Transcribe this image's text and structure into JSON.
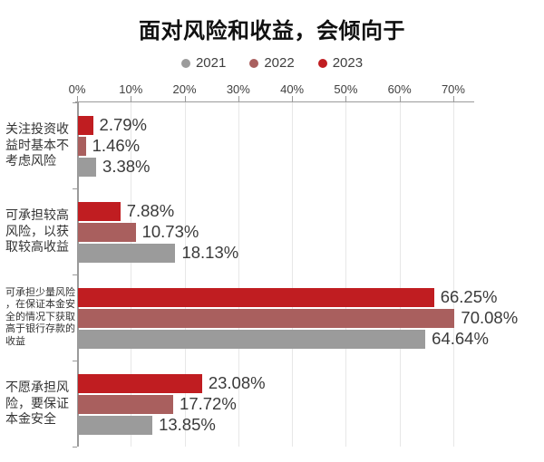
{
  "chart_data": {
    "type": "bar",
    "orientation": "horizontal",
    "title": "面对风险和收益，会倾向于",
    "x_axis": {
      "position": "top",
      "min": 0,
      "max": 70,
      "unit": "%",
      "ticks": [
        "0%",
        "10%",
        "20%",
        "30%",
        "40%",
        "50%",
        "60%",
        "70%"
      ],
      "grid": true
    },
    "legend": {
      "position": "top",
      "items": [
        {
          "label": "2021",
          "color": "#9b9b9b"
        },
        {
          "label": "2022",
          "color": "#a95f5e"
        },
        {
          "label": "2023",
          "color": "#c01d21"
        }
      ]
    },
    "categories": [
      "关注投资收益时基本不考虑风险",
      "可承担较高风险，以获取较高收益",
      "可承担少量风险，在保证本金安全的情况下获取高于银行存款的收益",
      "不愿承担风险，要保证本金安全"
    ],
    "category_label_lines": [
      [
        "关注投资收",
        "益时基本不",
        "考虑风险"
      ],
      [
        "可承担较高",
        "风险，以获",
        "取较高收益"
      ],
      [
        "可承担少量风险",
        "，在保证本金安",
        "全的情况下获取",
        "高于银行存款的",
        "收益"
      ],
      [
        "不愿承担风",
        "险，要保证",
        "本金安全"
      ]
    ],
    "series": [
      {
        "name": "2023",
        "color": "#c01d21",
        "values": [
          2.79,
          7.88,
          66.25,
          23.08
        ],
        "labels": [
          "2.79%",
          "7.88%",
          "66.25%",
          "23.08%"
        ]
      },
      {
        "name": "2022",
        "color": "#a95f5e",
        "values": [
          1.46,
          10.73,
          70.08,
          17.72
        ],
        "labels": [
          "1.46%",
          "10.73%",
          "70.08%",
          "17.72%"
        ]
      },
      {
        "name": "2021",
        "color": "#9b9b9b",
        "values": [
          3.38,
          18.13,
          64.64,
          13.85
        ],
        "labels": [
          "3.38%",
          "18.13%",
          "64.64%",
          "13.85%"
        ]
      }
    ],
    "colors": {
      "background": "#ffffff",
      "axis": "#9a9a9a",
      "grid": "#e7e7e7",
      "title": "#111111",
      "tick_label": "#404040",
      "value_label": "#3a3a3a",
      "category_label": "#333333"
    }
  }
}
